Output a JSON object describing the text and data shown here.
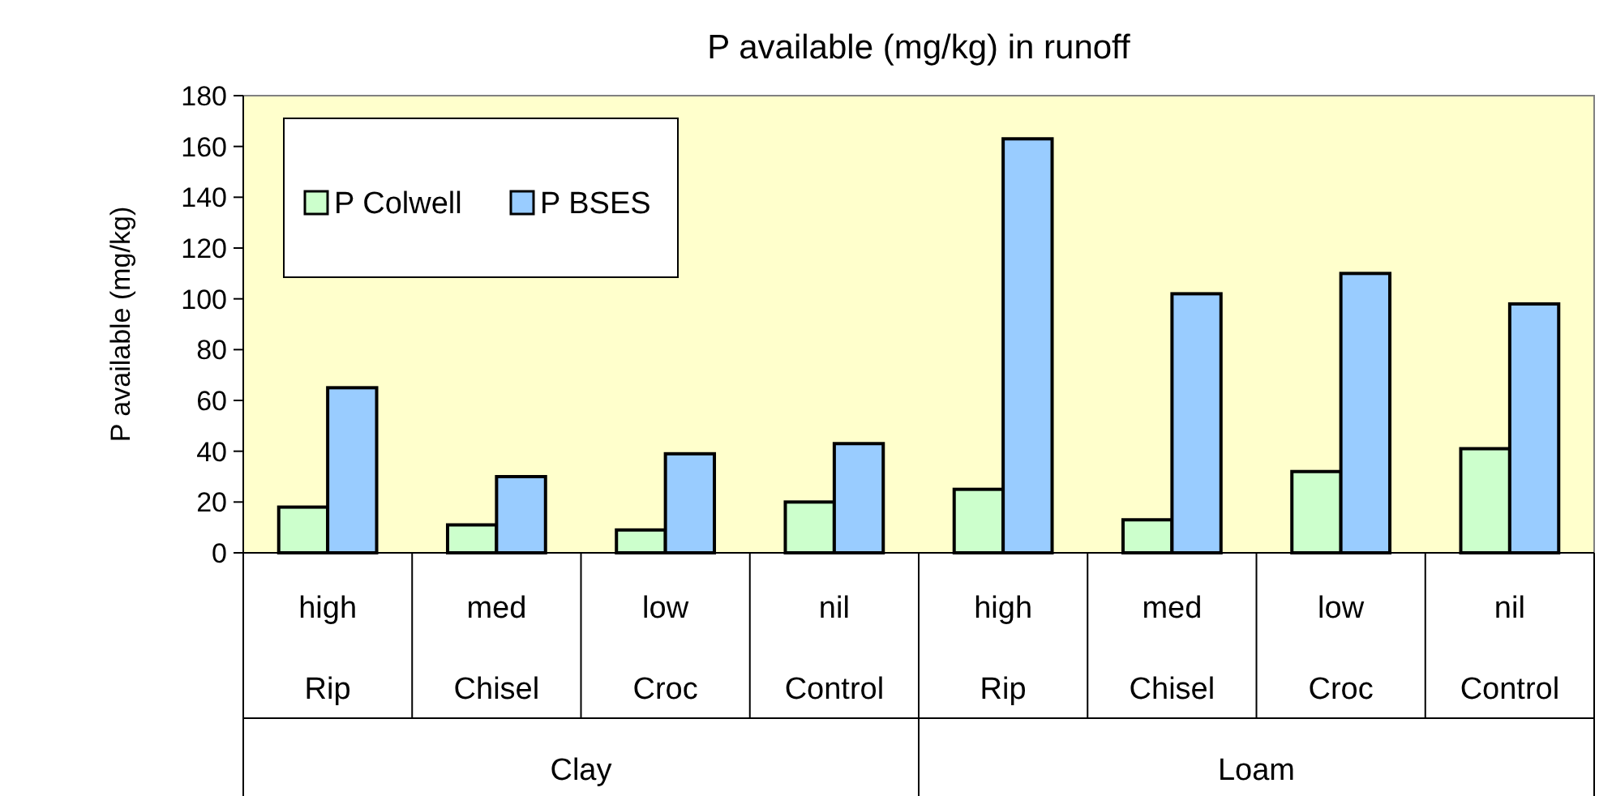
{
  "chart_data": {
    "type": "bar",
    "title": "P available (mg/kg) in runoff",
    "ylabel": "P available (mg/kg)",
    "categories": [
      "high",
      "med",
      "low",
      "nil",
      "high",
      "med",
      "low",
      "nil"
    ],
    "series": [
      {
        "name": "P Colwell",
        "color": "#ccffcc",
        "values": [
          18,
          11,
          9,
          20,
          25,
          13,
          32,
          41
        ]
      },
      {
        "name": "P BSES",
        "color": "#99ccff",
        "values": [
          65,
          30,
          39,
          43,
          163,
          102,
          110,
          98
        ]
      }
    ],
    "annotations": [
      "Rip",
      "Chisel",
      "Croc",
      "Control",
      "Rip",
      "Chisel",
      "Croc",
      "Control",
      "Clay",
      "Loam"
    ],
    "ylim": [
      0,
      180
    ],
    "yticks": [
      0,
      20,
      40,
      60,
      80,
      100,
      120,
      140,
      160,
      180
    ],
    "legend": "top left",
    "grid": false
  }
}
